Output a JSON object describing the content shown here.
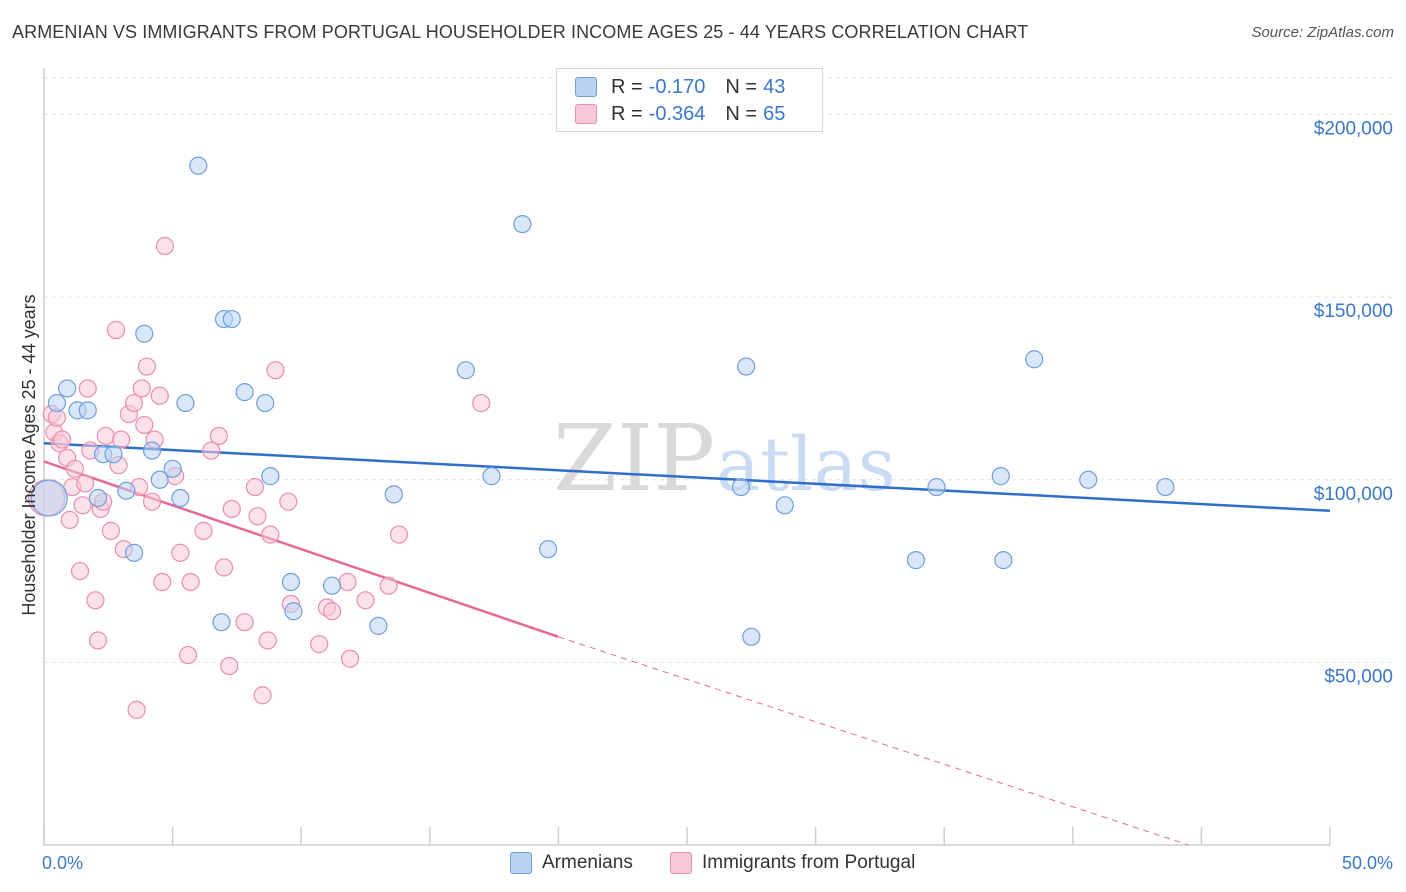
{
  "title": "ARMENIAN VS IMMIGRANTS FROM PORTUGAL HOUSEHOLDER INCOME AGES 25 - 44 YEARS CORRELATION CHART",
  "source": "Source: ZipAtlas.com",
  "watermark": {
    "zip": "ZIP",
    "atlas": "atlas"
  },
  "legend": {
    "rows": [
      {
        "r_label": "R =",
        "r_value": "-0.170",
        "n_label": "N =",
        "n_value": "43"
      },
      {
        "r_label": "R =",
        "r_value": "-0.364",
        "n_label": "N =",
        "n_value": "65"
      }
    ]
  },
  "bottom_legend": {
    "armenians": "Armenians",
    "portugal": "Immigrants from Portugal"
  },
  "colors": {
    "armenian_fill": "#b9d3f3",
    "armenian_stroke": "#6e9fde",
    "armenian_line": "#2f6fcb",
    "portugal_fill": "#f8c8d7",
    "portugal_stroke": "#ec8eac",
    "portugal_line": "#e46a95",
    "tick_label": "#3a78c9",
    "grid": "#e3e3e3"
  },
  "chart_data": {
    "type": "scatter",
    "title": "ARMENIAN VS IMMIGRANTS FROM PORTUGAL HOUSEHOLDER INCOME AGES 25 - 44 YEARS CORRELATION CHART",
    "xlabel": "",
    "ylabel": "Householder Income Ages 25 - 44 years",
    "xlim": [
      0,
      50
    ],
    "ylim": [
      0,
      210000
    ],
    "x_tick_labels": [
      "0.0%",
      "50.0%"
    ],
    "y_ticks": [
      50000,
      100000,
      150000,
      200000
    ],
    "y_tick_labels": [
      "$50,000",
      "$100,000",
      "$150,000",
      "$200,000"
    ],
    "grid": true,
    "legend_position": "top-center",
    "series": [
      {
        "name": "Armenians",
        "trend": {
          "x": [
            0,
            50
          ],
          "y": [
            110000,
            91500
          ],
          "extrapolated": false
        },
        "points": [
          {
            "x": 0.2,
            "y": 95000,
            "big": true
          },
          {
            "x": 0.5,
            "y": 121000
          },
          {
            "x": 0.9,
            "y": 125000
          },
          {
            "x": 1.3,
            "y": 119000
          },
          {
            "x": 1.7,
            "y": 119000
          },
          {
            "x": 2.1,
            "y": 95000
          },
          {
            "x": 2.3,
            "y": 107000
          },
          {
            "x": 2.7,
            "y": 107000
          },
          {
            "x": 3.2,
            "y": 97000
          },
          {
            "x": 3.5,
            "y": 80000
          },
          {
            "x": 3.9,
            "y": 140000
          },
          {
            "x": 4.2,
            "y": 108000
          },
          {
            "x": 4.5,
            "y": 100000
          },
          {
            "x": 5.0,
            "y": 103000
          },
          {
            "x": 5.3,
            "y": 95000
          },
          {
            "x": 5.5,
            "y": 121000
          },
          {
            "x": 6.0,
            "y": 186000
          },
          {
            "x": 6.9,
            "y": 61000
          },
          {
            "x": 7.0,
            "y": 144000
          },
          {
            "x": 7.3,
            "y": 144000
          },
          {
            "x": 7.8,
            "y": 124000
          },
          {
            "x": 8.6,
            "y": 121000
          },
          {
            "x": 8.8,
            "y": 101000
          },
          {
            "x": 9.6,
            "y": 72000
          },
          {
            "x": 9.7,
            "y": 64000
          },
          {
            "x": 11.2,
            "y": 71000
          },
          {
            "x": 13.0,
            "y": 60000
          },
          {
            "x": 13.6,
            "y": 96000
          },
          {
            "x": 16.4,
            "y": 130000
          },
          {
            "x": 17.4,
            "y": 101000
          },
          {
            "x": 18.6,
            "y": 170000
          },
          {
            "x": 19.6,
            "y": 81000
          },
          {
            "x": 27.1,
            "y": 98000
          },
          {
            "x": 27.3,
            "y": 131000
          },
          {
            "x": 27.5,
            "y": 57000
          },
          {
            "x": 28.8,
            "y": 93000
          },
          {
            "x": 33.9,
            "y": 78000
          },
          {
            "x": 34.7,
            "y": 98000
          },
          {
            "x": 37.3,
            "y": 78000
          },
          {
            "x": 37.2,
            "y": 101000
          },
          {
            "x": 38.5,
            "y": 133000
          },
          {
            "x": 40.6,
            "y": 100000
          },
          {
            "x": 43.6,
            "y": 98000
          }
        ]
      },
      {
        "name": "Immigrants from Portugal",
        "trend": {
          "x": [
            0,
            20
          ],
          "y": [
            105000,
            57000
          ],
          "extrapolated_to": {
            "x": 44.5,
            "y": 0
          }
        },
        "points": [
          {
            "x": 0.1,
            "y": 95000,
            "big": true
          },
          {
            "x": 0.3,
            "y": 118000
          },
          {
            "x": 0.4,
            "y": 113000
          },
          {
            "x": 0.5,
            "y": 117000
          },
          {
            "x": 0.6,
            "y": 110000
          },
          {
            "x": 0.7,
            "y": 111000
          },
          {
            "x": 0.9,
            "y": 106000
          },
          {
            "x": 1.0,
            "y": 89000
          },
          {
            "x": 1.1,
            "y": 98000
          },
          {
            "x": 1.2,
            "y": 103000
          },
          {
            "x": 1.4,
            "y": 75000
          },
          {
            "x": 1.5,
            "y": 93000
          },
          {
            "x": 1.6,
            "y": 99000
          },
          {
            "x": 1.7,
            "y": 125000
          },
          {
            "x": 1.8,
            "y": 108000
          },
          {
            "x": 2.0,
            "y": 67000
          },
          {
            "x": 2.1,
            "y": 56000
          },
          {
            "x": 2.2,
            "y": 92000
          },
          {
            "x": 2.3,
            "y": 94000
          },
          {
            "x": 2.4,
            "y": 112000
          },
          {
            "x": 2.6,
            "y": 86000
          },
          {
            "x": 2.8,
            "y": 141000
          },
          {
            "x": 2.9,
            "y": 104000
          },
          {
            "x": 3.0,
            "y": 111000
          },
          {
            "x": 3.1,
            "y": 81000
          },
          {
            "x": 3.3,
            "y": 118000
          },
          {
            "x": 3.5,
            "y": 121000
          },
          {
            "x": 3.6,
            "y": 37000
          },
          {
            "x": 3.7,
            "y": 98000
          },
          {
            "x": 3.8,
            "y": 125000
          },
          {
            "x": 3.9,
            "y": 115000
          },
          {
            "x": 4.0,
            "y": 131000
          },
          {
            "x": 4.2,
            "y": 94000
          },
          {
            "x": 4.3,
            "y": 111000
          },
          {
            "x": 4.5,
            "y": 123000
          },
          {
            "x": 4.6,
            "y": 72000
          },
          {
            "x": 4.7,
            "y": 164000
          },
          {
            "x": 5.1,
            "y": 101000
          },
          {
            "x": 5.3,
            "y": 80000
          },
          {
            "x": 5.6,
            "y": 52000
          },
          {
            "x": 5.7,
            "y": 72000
          },
          {
            "x": 6.2,
            "y": 86000
          },
          {
            "x": 6.5,
            "y": 108000
          },
          {
            "x": 6.8,
            "y": 112000
          },
          {
            "x": 7.0,
            "y": 76000
          },
          {
            "x": 7.2,
            "y": 49000
          },
          {
            "x": 7.3,
            "y": 92000
          },
          {
            "x": 7.8,
            "y": 61000
          },
          {
            "x": 8.2,
            "y": 98000
          },
          {
            "x": 8.3,
            "y": 90000
          },
          {
            "x": 8.5,
            "y": 41000
          },
          {
            "x": 8.7,
            "y": 56000
          },
          {
            "x": 8.8,
            "y": 85000
          },
          {
            "x": 9.0,
            "y": 130000
          },
          {
            "x": 9.5,
            "y": 94000
          },
          {
            "x": 9.6,
            "y": 66000
          },
          {
            "x": 10.7,
            "y": 55000
          },
          {
            "x": 11.0,
            "y": 65000
          },
          {
            "x": 11.2,
            "y": 64000
          },
          {
            "x": 11.8,
            "y": 72000
          },
          {
            "x": 11.9,
            "y": 51000
          },
          {
            "x": 12.5,
            "y": 67000
          },
          {
            "x": 13.4,
            "y": 71000
          },
          {
            "x": 13.8,
            "y": 85000
          },
          {
            "x": 17.0,
            "y": 121000
          }
        ]
      }
    ]
  }
}
